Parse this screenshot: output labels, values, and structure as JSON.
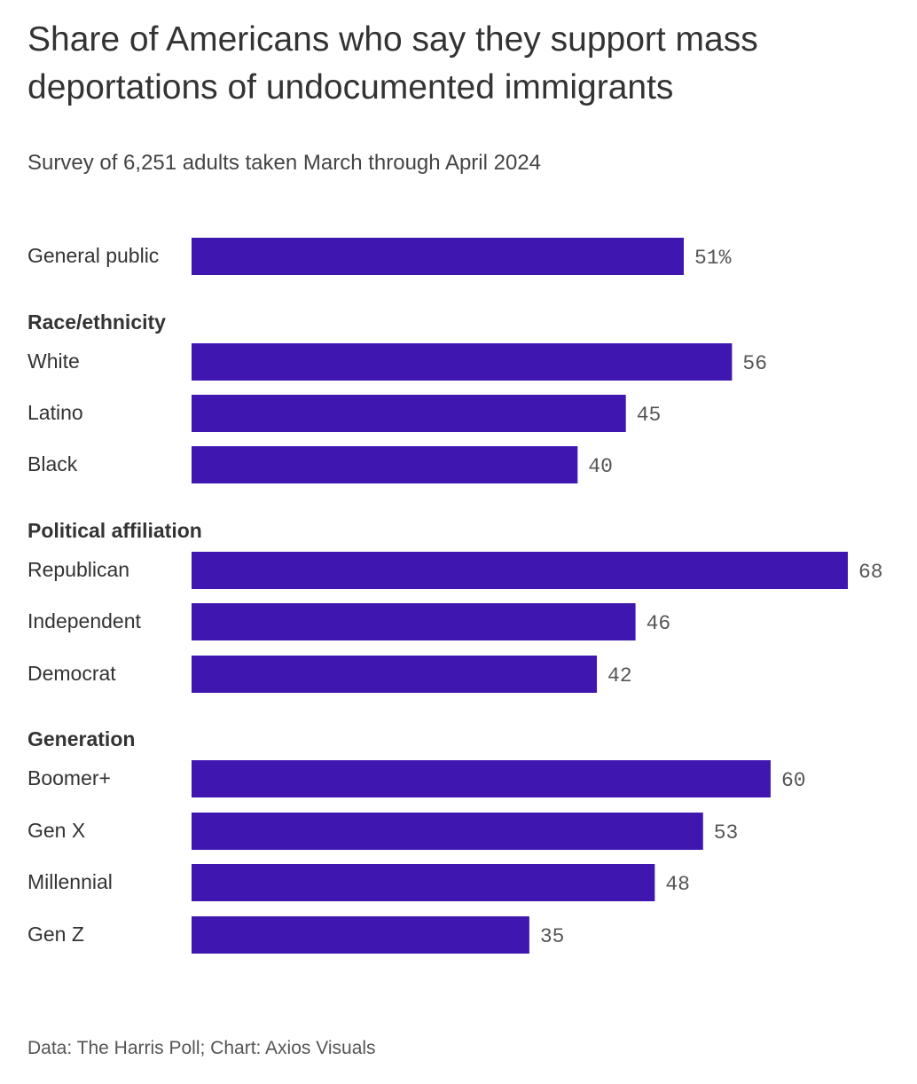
{
  "chart_data": {
    "type": "bar",
    "orientation": "horizontal",
    "title": "Share of Americans who say they support mass deportations of undocumented immigrants",
    "subtitle": "Survey of 6,251 adults taken March through April 2024",
    "source": "Data: The Harris Poll; Chart: Axios Visuals",
    "bar_color": "#3F17B0",
    "xlim": [
      0,
      68
    ],
    "grid": false,
    "groups": [
      {
        "label": "",
        "items": [
          {
            "category": "General public",
            "value": 51,
            "label": "51%"
          }
        ]
      },
      {
        "label": "Race/ethnicity",
        "items": [
          {
            "category": "White",
            "value": 56,
            "label": "56"
          },
          {
            "category": "Latino",
            "value": 45,
            "label": "45"
          },
          {
            "category": "Black",
            "value": 40,
            "label": "40"
          }
        ]
      },
      {
        "label": "Political affiliation",
        "items": [
          {
            "category": "Republican",
            "value": 68,
            "label": "68"
          },
          {
            "category": "Independent",
            "value": 46,
            "label": "46"
          },
          {
            "category": "Democrat",
            "value": 42,
            "label": "42"
          }
        ]
      },
      {
        "label": "Generation",
        "items": [
          {
            "category": "Boomer+",
            "value": 60,
            "label": "60"
          },
          {
            "category": "Gen X",
            "value": 53,
            "label": "53"
          },
          {
            "category": "Millennial",
            "value": 48,
            "label": "48"
          },
          {
            "category": "Gen Z",
            "value": 35,
            "label": "35"
          }
        ]
      }
    ]
  }
}
